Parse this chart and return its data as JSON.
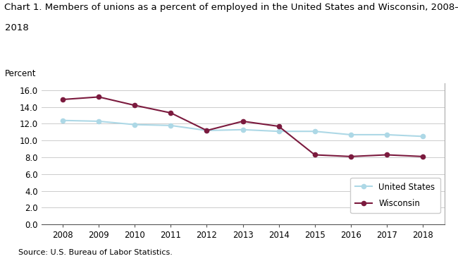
{
  "title_line1": "Chart 1. Members of unions as a percent of employed in the United States and Wisconsin, 2008–",
  "title_line2": "2018",
  "ylabel": "Percent",
  "source": "Source: U.S. Bureau of Labor Statistics.",
  "years": [
    2008,
    2009,
    2010,
    2011,
    2012,
    2013,
    2014,
    2015,
    2016,
    2017,
    2018
  ],
  "us_values": [
    12.4,
    12.3,
    11.9,
    11.8,
    11.2,
    11.3,
    11.1,
    11.1,
    10.7,
    10.7,
    10.5
  ],
  "wi_values": [
    14.9,
    15.2,
    14.2,
    13.3,
    11.2,
    12.3,
    11.7,
    8.3,
    8.1,
    8.3,
    8.1
  ],
  "us_color": "#add8e6",
  "wi_color": "#7b1a3e",
  "us_label": "United States",
  "wi_label": "Wisconsin",
  "ylim": [
    0,
    16.8
  ],
  "yticks": [
    0.0,
    2.0,
    4.0,
    6.0,
    8.0,
    10.0,
    12.0,
    14.0,
    16.0
  ],
  "background_color": "#ffffff",
  "grid_color": "#cccccc",
  "title_fontsize": 9.5,
  "axis_fontsize": 8.5,
  "tick_fontsize": 8.5,
  "legend_fontsize": 8.5,
  "source_fontsize": 8
}
